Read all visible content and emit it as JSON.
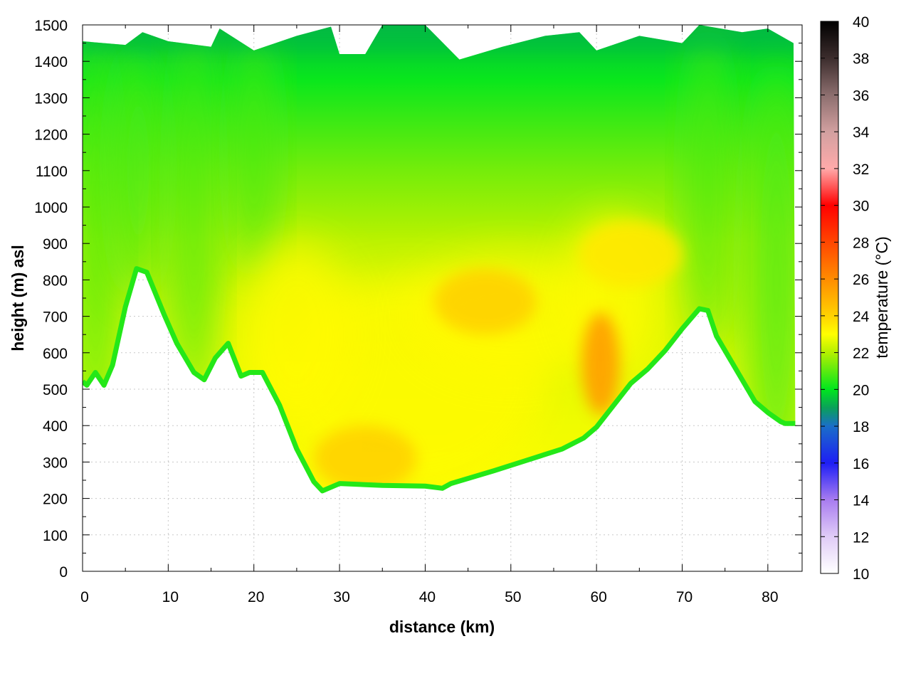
{
  "chart_data": {
    "type": "heatmap",
    "xlabel": "distance (km)",
    "ylabel": "height (m) asl",
    "colorbar_label": "temperature (°C)",
    "xlim": [
      0,
      84
    ],
    "ylim": [
      0,
      1500
    ],
    "clim": [
      10,
      40
    ],
    "x_ticks": [
      "0",
      "10",
      "20",
      "30",
      "40",
      "50",
      "60",
      "70",
      "80"
    ],
    "y_ticks": [
      "0",
      "100",
      "200",
      "300",
      "400",
      "500",
      "600",
      "700",
      "800",
      "900",
      "1000",
      "1100",
      "1200",
      "1300",
      "1400",
      "1500"
    ],
    "colorbar_ticks": [
      "10",
      "12",
      "14",
      "16",
      "18",
      "20",
      "22",
      "24",
      "26",
      "28",
      "30",
      "32",
      "34",
      "36",
      "38",
      "40"
    ],
    "grid": true,
    "colormap": [
      {
        "t": 10,
        "color": "#ffffff"
      },
      {
        "t": 12,
        "color": "#e0ccf7"
      },
      {
        "t": 14,
        "color": "#a87cf0"
      },
      {
        "t": 16,
        "color": "#1e1ef5"
      },
      {
        "t": 18,
        "color": "#1a6ec8"
      },
      {
        "t": 19,
        "color": "#0aa05a"
      },
      {
        "t": 20,
        "color": "#00e61e"
      },
      {
        "t": 22,
        "color": "#b4f000"
      },
      {
        "t": 23,
        "color": "#ffff00"
      },
      {
        "t": 24,
        "color": "#ffd200"
      },
      {
        "t": 26,
        "color": "#ff8c00"
      },
      {
        "t": 28,
        "color": "#ff4600"
      },
      {
        "t": 30,
        "color": "#ff0000"
      },
      {
        "t": 32,
        "color": "#ffaaaa"
      },
      {
        "t": 34,
        "color": "#d2a0a0"
      },
      {
        "t": 36,
        "color": "#8c6e6e"
      },
      {
        "t": 38,
        "color": "#3c2d2d"
      },
      {
        "t": 40,
        "color": "#000000"
      }
    ],
    "terrain_profile": {
      "distance_km": [
        0,
        0.5,
        1.5,
        2.5,
        3.5,
        5,
        6.3,
        7.5,
        9.5,
        11,
        13,
        14.2,
        15.5,
        17,
        18.5,
        19.5,
        21,
        23,
        25,
        27,
        28,
        30,
        35,
        40,
        42,
        43,
        48,
        52,
        56,
        58.5,
        60,
        62,
        64,
        66,
        68,
        70,
        72,
        73,
        74,
        75.5,
        77,
        78.5,
        80,
        81.5,
        82,
        83.2
      ],
      "height_m": [
        515,
        505,
        540,
        505,
        560,
        720,
        825,
        815,
        700,
        620,
        540,
        520,
        580,
        620,
        530,
        540,
        540,
        450,
        330,
        240,
        215,
        235,
        230,
        228,
        222,
        235,
        270,
        300,
        330,
        360,
        390,
        450,
        510,
        550,
        600,
        660,
        715,
        710,
        640,
        580,
        520,
        460,
        430,
        405,
        400,
        400
      ]
    },
    "top_of_domain": {
      "distance_km": [
        0,
        5,
        7,
        10,
        15,
        16,
        20,
        25,
        29,
        30,
        33,
        35,
        40,
        44,
        49,
        54,
        58,
        60,
        65,
        70,
        72,
        77,
        80,
        83
      ],
      "height_m": [
        1455,
        1445,
        1480,
        1455,
        1440,
        1490,
        1430,
        1470,
        1495,
        1420,
        1420,
        1500,
        1500,
        1405,
        1440,
        1470,
        1480,
        1430,
        1470,
        1450,
        1500,
        1480,
        1490,
        1450
      ]
    },
    "warm_cores": [
      {
        "distance_km": 33,
        "height_m": 310,
        "temperature_c": 24
      },
      {
        "distance_km": 47,
        "height_m": 740,
        "temperature_c": 24
      },
      {
        "distance_km": 60.5,
        "height_m": 570,
        "temperature_c": 25.5
      },
      {
        "distance_km": 64,
        "height_m": 870,
        "temperature_c": 23.5
      }
    ]
  }
}
